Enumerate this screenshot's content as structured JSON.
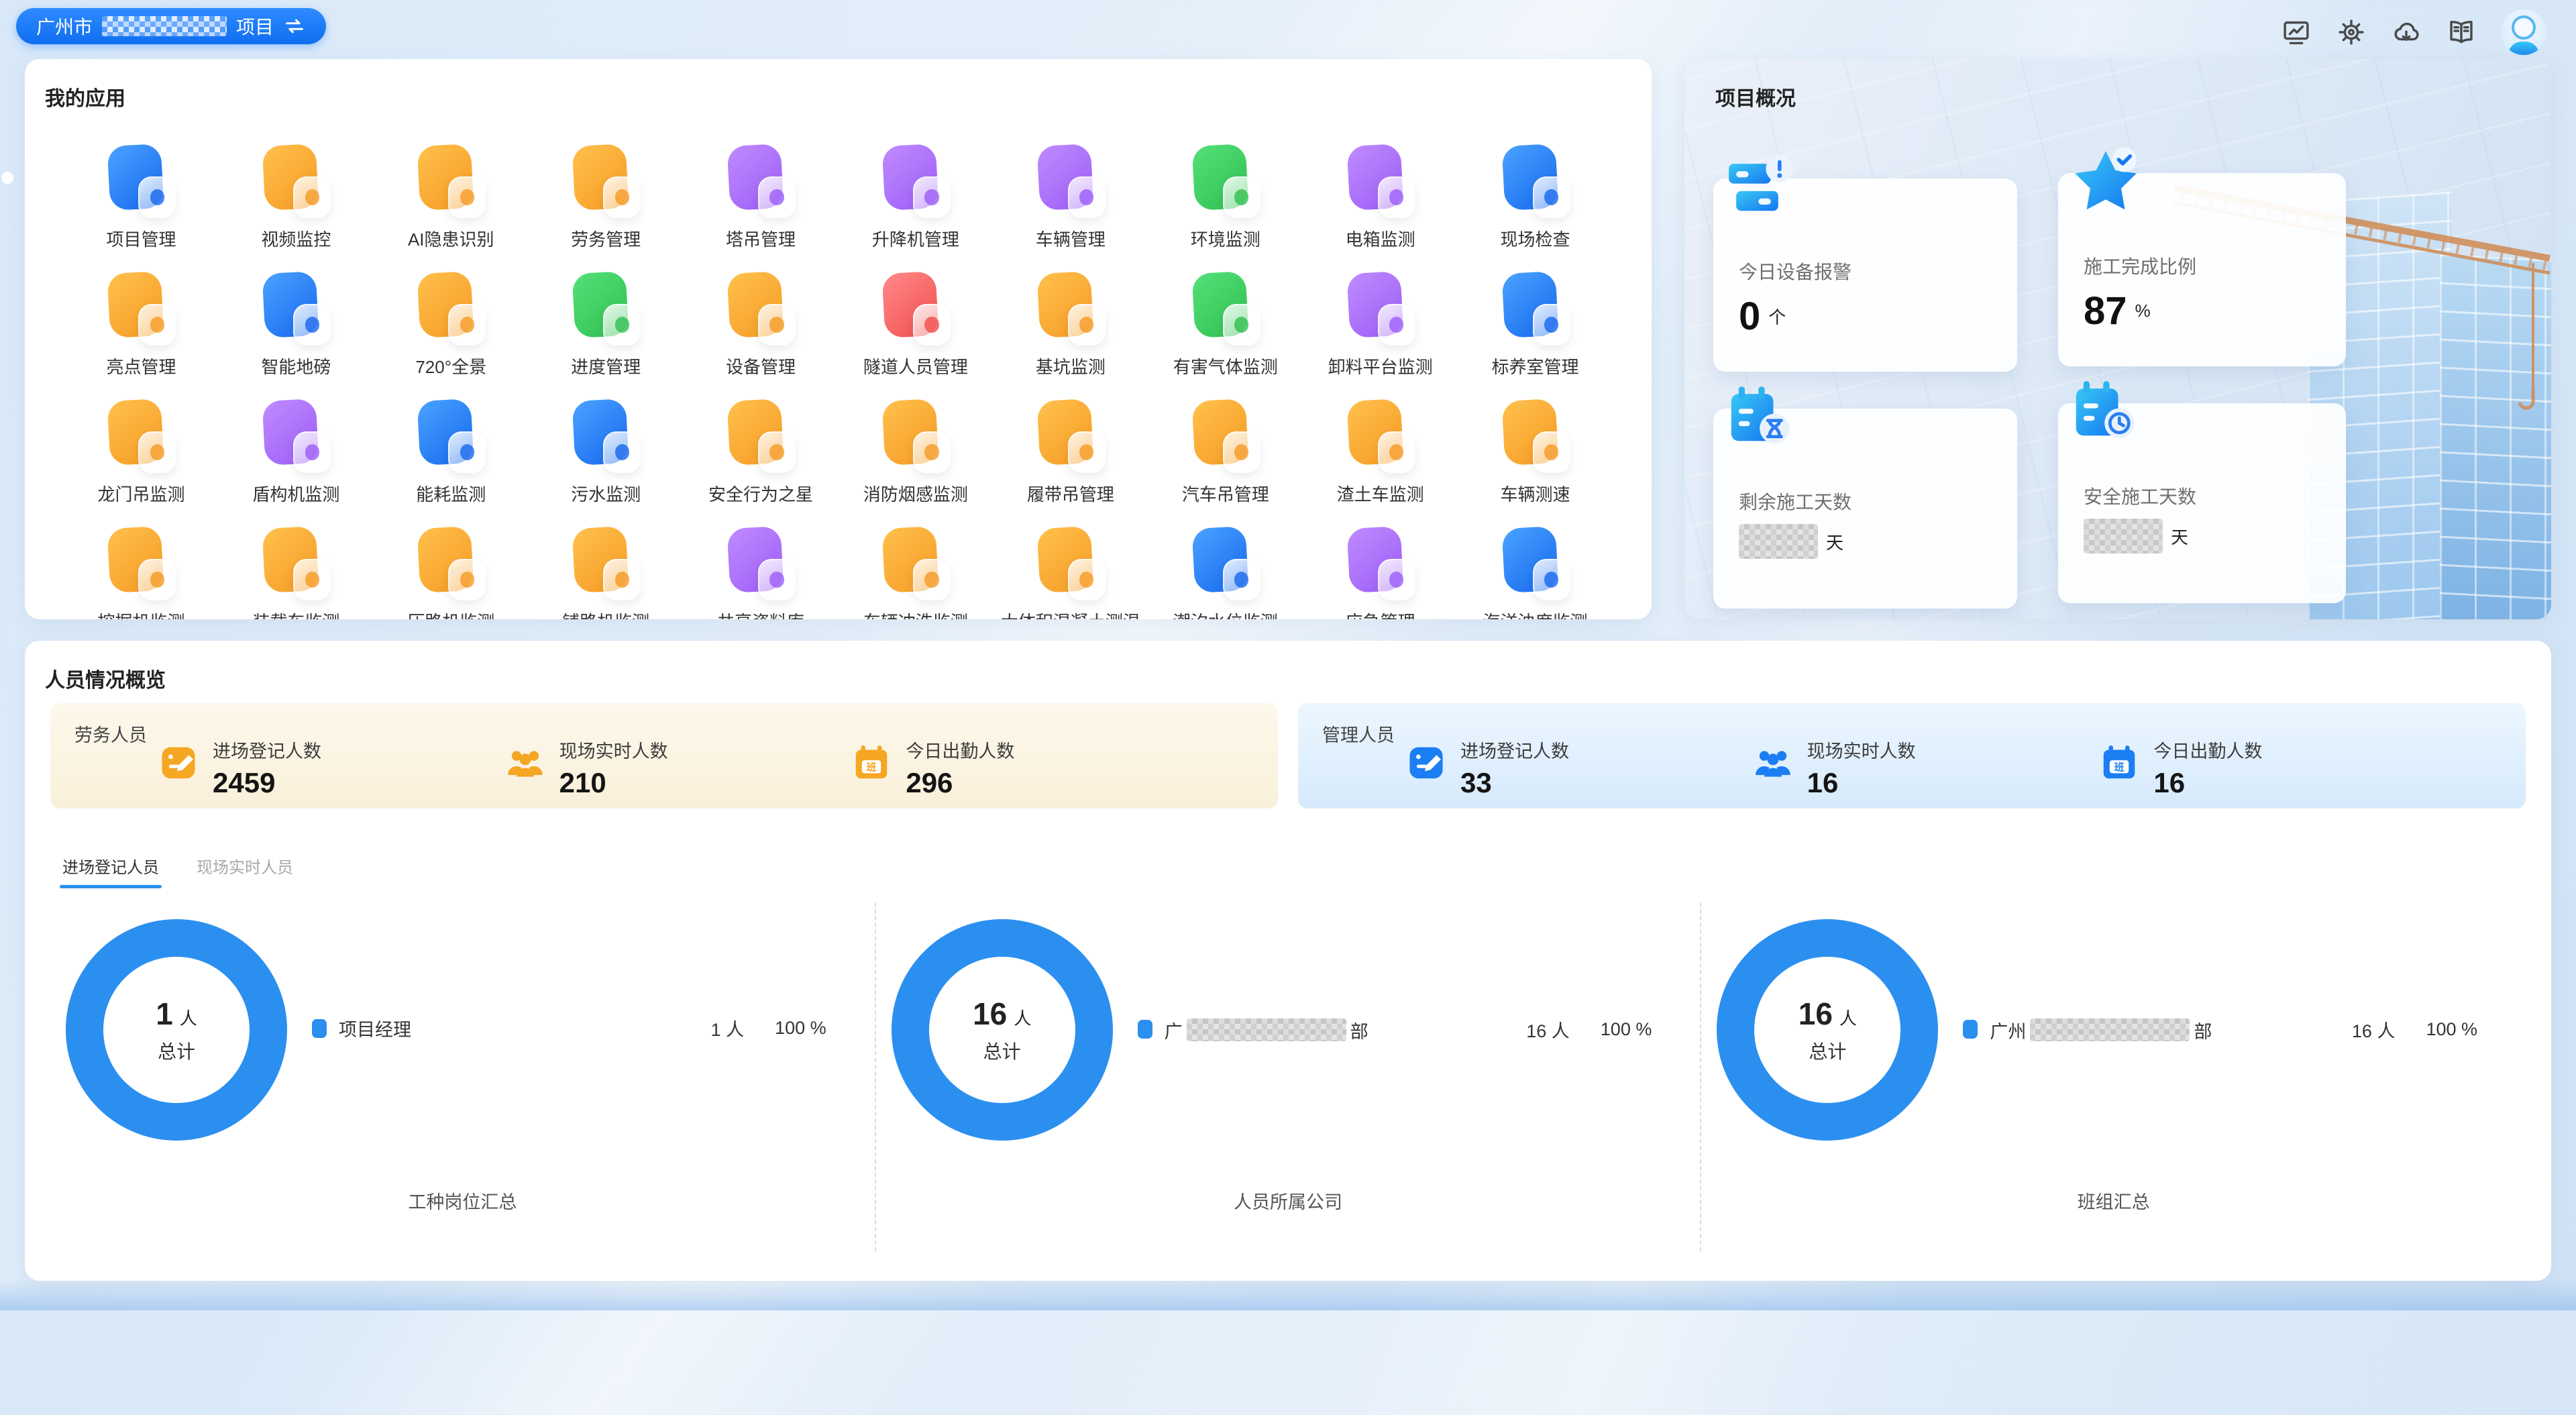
{
  "header": {
    "project": {
      "prefix": "广州市",
      "redacted": true,
      "suffix": "项目"
    },
    "toolbar_icons": [
      "monitor-icon",
      "settings-icon",
      "cloud-download-icon",
      "manual-icon"
    ],
    "avatar": "user-avatar"
  },
  "palette": {
    "blue": [
      "#4aa3ff",
      "#1667ee"
    ],
    "orange": [
      "#ffc14d",
      "#f59a23"
    ],
    "purple": [
      "#c08bff",
      "#9b5cf6"
    ],
    "green": [
      "#55e07a",
      "#2fbf4f"
    ],
    "red": [
      "#ff8a8a",
      "#f24c4c"
    ],
    "accent": "#2b8ff0"
  },
  "my_apps": {
    "title": "我的应用",
    "apps": [
      {
        "label": "项目管理",
        "color": "blue"
      },
      {
        "label": "视频监控",
        "color": "orange"
      },
      {
        "label": "AI隐患识别",
        "color": "orange"
      },
      {
        "label": "劳务管理",
        "color": "orange"
      },
      {
        "label": "塔吊管理",
        "color": "purple"
      },
      {
        "label": "升降机管理",
        "color": "purple"
      },
      {
        "label": "车辆管理",
        "color": "purple"
      },
      {
        "label": "环境监测",
        "color": "green"
      },
      {
        "label": "电箱监测",
        "color": "purple"
      },
      {
        "label": "现场检查",
        "color": "blue"
      },
      {
        "label": "亮点管理",
        "color": "orange"
      },
      {
        "label": "智能地磅",
        "color": "blue"
      },
      {
        "label": "720°全景",
        "color": "orange"
      },
      {
        "label": "进度管理",
        "color": "green"
      },
      {
        "label": "设备管理",
        "color": "orange"
      },
      {
        "label": "隧道人员管理",
        "color": "red"
      },
      {
        "label": "基坑监测",
        "color": "orange"
      },
      {
        "label": "有害气体监测",
        "color": "green"
      },
      {
        "label": "卸料平台监测",
        "color": "purple"
      },
      {
        "label": "标养室管理",
        "color": "blue"
      },
      {
        "label": "龙门吊监测",
        "color": "orange"
      },
      {
        "label": "盾构机监测",
        "color": "purple"
      },
      {
        "label": "能耗监测",
        "color": "blue"
      },
      {
        "label": "污水监测",
        "color": "blue"
      },
      {
        "label": "安全行为之星",
        "color": "orange"
      },
      {
        "label": "消防烟感监测",
        "color": "orange"
      },
      {
        "label": "履带吊管理",
        "color": "orange"
      },
      {
        "label": "汽车吊管理",
        "color": "orange"
      },
      {
        "label": "渣土车监测",
        "color": "orange"
      },
      {
        "label": "车辆测速",
        "color": "orange"
      },
      {
        "label": "挖掘机监测",
        "color": "orange"
      },
      {
        "label": "装载车监测",
        "color": "orange"
      },
      {
        "label": "压路机监测",
        "color": "orange"
      },
      {
        "label": "铺路机监测",
        "color": "orange"
      },
      {
        "label": "共享资料库",
        "color": "purple"
      },
      {
        "label": "车辆冲洗监测",
        "color": "orange"
      },
      {
        "label": "大体积混凝土测温",
        "color": "orange"
      },
      {
        "label": "潮汐水位监测",
        "color": "blue"
      },
      {
        "label": "应急管理",
        "color": "purple"
      },
      {
        "label": "海洋浊度监测",
        "color": "blue"
      }
    ]
  },
  "project_overview": {
    "title": "项目概况",
    "cards": [
      {
        "icon": "device-alarm-icon",
        "label": "今日设备报警",
        "value": "0",
        "unit": "个",
        "redacted": false
      },
      {
        "icon": "star-check-icon",
        "label": "施工完成比例",
        "value": "87",
        "unit": "%",
        "redacted": false
      },
      {
        "icon": "calendar-hourglass-icon",
        "label": "剩余施工天数",
        "value": "",
        "unit": "天",
        "redacted": true
      },
      {
        "icon": "calendar-clock-icon",
        "label": "安全施工天数",
        "value": "",
        "unit": "天",
        "redacted": true
      }
    ]
  },
  "personnel": {
    "title": "人员情况概览",
    "stat_icons": [
      "register-icon",
      "people-icon",
      "attendance-icon"
    ],
    "labor": {
      "title": "劳务人员",
      "accent": "#f5a623",
      "stats": [
        {
          "key": "registered",
          "label": "进场登记人数",
          "value": "2459"
        },
        {
          "key": "onsite",
          "label": "现场实时人数",
          "value": "210"
        },
        {
          "key": "attendance",
          "label": "今日出勤人数",
          "value": "296"
        }
      ]
    },
    "management": {
      "title": "管理人员",
      "accent": "#1b7ef2",
      "stats": [
        {
          "key": "registered",
          "label": "进场登记人数",
          "value": "33"
        },
        {
          "key": "onsite",
          "label": "现场实时人数",
          "value": "16"
        },
        {
          "key": "attendance",
          "label": "今日出勤人数",
          "value": "16"
        }
      ]
    },
    "tabs": [
      {
        "label": "进场登记人员",
        "active": true
      },
      {
        "label": "现场实时人员",
        "active": false
      }
    ],
    "chart_color": "#2b8ff0",
    "charts": [
      {
        "total": "1",
        "total_unit": "人",
        "total_label": "总计",
        "title": "工种岗位汇总",
        "legend": {
          "label": "项目经理",
          "redacted": false,
          "count": "1 人",
          "percent": "100 %"
        }
      },
      {
        "total": "16",
        "total_unit": "人",
        "total_label": "总计",
        "title": "人员所属公司",
        "legend": {
          "prefix": "广",
          "redacted": true,
          "suffix": "部",
          "count": "16 人",
          "percent": "100 %"
        }
      },
      {
        "total": "16",
        "total_unit": "人",
        "total_label": "总计",
        "title": "班组汇总",
        "legend": {
          "prefix": "广州",
          "redacted": true,
          "suffix": "部",
          "count": "16 人",
          "percent": "100 %"
        }
      }
    ]
  },
  "chart_data": [
    {
      "type": "pie",
      "title": "工种岗位汇总",
      "total": "1 人",
      "labels": [
        "项目经理"
      ],
      "label_redacted": false,
      "values": [
        1
      ],
      "percents": [
        "100 %"
      ],
      "color": "#2b8ff0",
      "legend_position": "right"
    },
    {
      "type": "pie",
      "title": "人员所属公司",
      "total": "16 人",
      "labels": [
        "广…部"
      ],
      "label_redacted": true,
      "values": [
        16
      ],
      "percents": [
        "100 %"
      ],
      "color": "#2b8ff0",
      "legend_position": "right"
    },
    {
      "type": "pie",
      "title": "班组汇总",
      "total": "16 人",
      "labels": [
        "广州…部"
      ],
      "label_redacted": true,
      "values": [
        16
      ],
      "percents": [
        "100 %"
      ],
      "color": "#2b8ff0",
      "legend_position": "right"
    }
  ]
}
